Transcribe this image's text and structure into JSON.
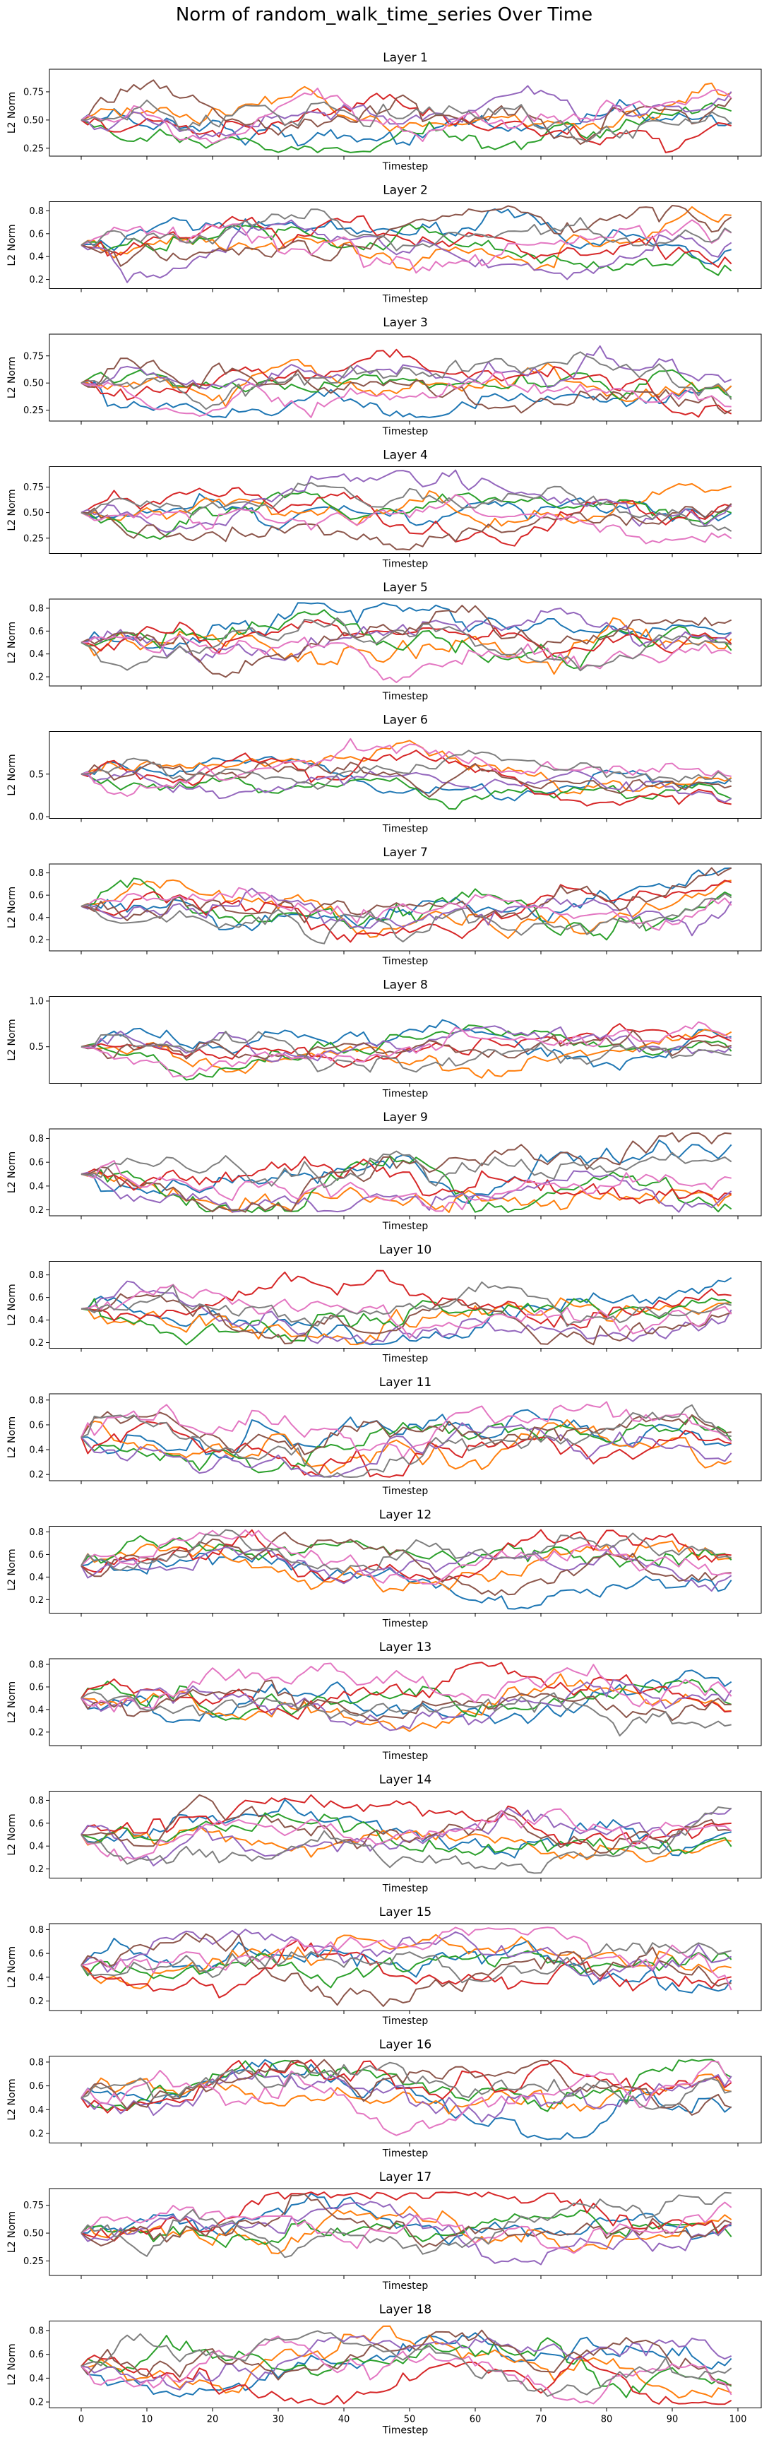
{
  "title": "Norm of random_walk_time_series Over Time",
  "colors": [
    "#1f77b4",
    "#ff7f0e",
    "#2ca02c",
    "#d62728",
    "#9467bd",
    "#8c564b",
    "#e377c2",
    "#7f7f7f"
  ],
  "chart_data": {
    "type": "line",
    "title": "Norm of random_walk_time_series Over Time",
    "xlabel": "Timestep",
    "ylabel": "L2 Norm",
    "xlim": [
      0,
      100
    ],
    "x_ticks": [
      0,
      10,
      20,
      30,
      40,
      50,
      60,
      70,
      80,
      90,
      100
    ],
    "series_count": 8,
    "start_value": 0.5,
    "num_points": 100,
    "grid": false,
    "panels": [
      {
        "title": "Layer 1",
        "ylim": [
          0.18,
          0.95
        ],
        "yticks": [
          "0.25",
          "0.50",
          "0.75"
        ],
        "ytick_values": [
          0.25,
          0.5,
          0.75
        ]
      },
      {
        "title": "Layer 2",
        "ylim": [
          0.12,
          0.88
        ],
        "yticks": [
          "0.2",
          "0.4",
          "0.6",
          "0.8"
        ],
        "ytick_values": [
          0.2,
          0.4,
          0.6,
          0.8
        ]
      },
      {
        "title": "Layer 3",
        "ylim": [
          0.15,
          0.95
        ],
        "yticks": [
          "0.25",
          "0.50",
          "0.75"
        ],
        "ytick_values": [
          0.25,
          0.5,
          0.75
        ]
      },
      {
        "title": "Layer 4",
        "ylim": [
          0.1,
          0.95
        ],
        "yticks": [
          "0.25",
          "0.50",
          "0.75"
        ],
        "ytick_values": [
          0.25,
          0.5,
          0.75
        ]
      },
      {
        "title": "Layer 5",
        "ylim": [
          0.12,
          0.88
        ],
        "yticks": [
          "0.2",
          "0.4",
          "0.6",
          "0.8"
        ],
        "ytick_values": [
          0.2,
          0.4,
          0.6,
          0.8
        ]
      },
      {
        "title": "Layer 6",
        "ylim": [
          -0.02,
          1.0
        ],
        "yticks": [
          "0.0",
          "0.5"
        ],
        "ytick_values": [
          0.0,
          0.5
        ]
      },
      {
        "title": "Layer 7",
        "ylim": [
          0.1,
          0.88
        ],
        "yticks": [
          "0.2",
          "0.4",
          "0.6",
          "0.8"
        ],
        "ytick_values": [
          0.2,
          0.4,
          0.6,
          0.8
        ]
      },
      {
        "title": "Layer 8",
        "ylim": [
          0.1,
          1.05
        ],
        "yticks": [
          "0.5",
          "1.0"
        ],
        "ytick_values": [
          0.5,
          1.0
        ]
      },
      {
        "title": "Layer 9",
        "ylim": [
          0.15,
          0.88
        ],
        "yticks": [
          "0.2",
          "0.4",
          "0.6",
          "0.8"
        ],
        "ytick_values": [
          0.2,
          0.4,
          0.6,
          0.8
        ]
      },
      {
        "title": "Layer 10",
        "ylim": [
          0.15,
          0.92
        ],
        "yticks": [
          "0.2",
          "0.4",
          "0.6",
          "0.8"
        ],
        "ytick_values": [
          0.2,
          0.4,
          0.6,
          0.8
        ]
      },
      {
        "title": "Layer 11",
        "ylim": [
          0.15,
          0.85
        ],
        "yticks": [
          "0.2",
          "0.4",
          "0.6",
          "0.8"
        ],
        "ytick_values": [
          0.2,
          0.4,
          0.6,
          0.8
        ]
      },
      {
        "title": "Layer 12",
        "ylim": [
          0.08,
          0.85
        ],
        "yticks": [
          "0.2",
          "0.4",
          "0.6",
          "0.8"
        ],
        "ytick_values": [
          0.2,
          0.4,
          0.6,
          0.8
        ]
      },
      {
        "title": "Layer 13",
        "ylim": [
          0.08,
          0.85
        ],
        "yticks": [
          "0.2",
          "0.4",
          "0.6",
          "0.8"
        ],
        "ytick_values": [
          0.2,
          0.4,
          0.6,
          0.8
        ]
      },
      {
        "title": "Layer 14",
        "ylim": [
          0.12,
          0.88
        ],
        "yticks": [
          "0.2",
          "0.4",
          "0.6",
          "0.8"
        ],
        "ytick_values": [
          0.2,
          0.4,
          0.6,
          0.8
        ]
      },
      {
        "title": "Layer 15",
        "ylim": [
          0.12,
          0.85
        ],
        "yticks": [
          "0.2",
          "0.4",
          "0.6",
          "0.8"
        ],
        "ytick_values": [
          0.2,
          0.4,
          0.6,
          0.8
        ]
      },
      {
        "title": "Layer 16",
        "ylim": [
          0.12,
          0.85
        ],
        "yticks": [
          "0.2",
          "0.4",
          "0.6",
          "0.8"
        ],
        "ytick_values": [
          0.2,
          0.4,
          0.6,
          0.8
        ]
      },
      {
        "title": "Layer 17",
        "ylim": [
          0.12,
          0.9
        ],
        "yticks": [
          "0.25",
          "0.50",
          "0.75"
        ],
        "ytick_values": [
          0.25,
          0.5,
          0.75
        ]
      },
      {
        "title": "Layer 18",
        "ylim": [
          0.15,
          0.88
        ],
        "yticks": [
          "0.2",
          "0.4",
          "0.6",
          "0.8"
        ],
        "ytick_values": [
          0.2,
          0.4,
          0.6,
          0.8
        ]
      }
    ]
  }
}
